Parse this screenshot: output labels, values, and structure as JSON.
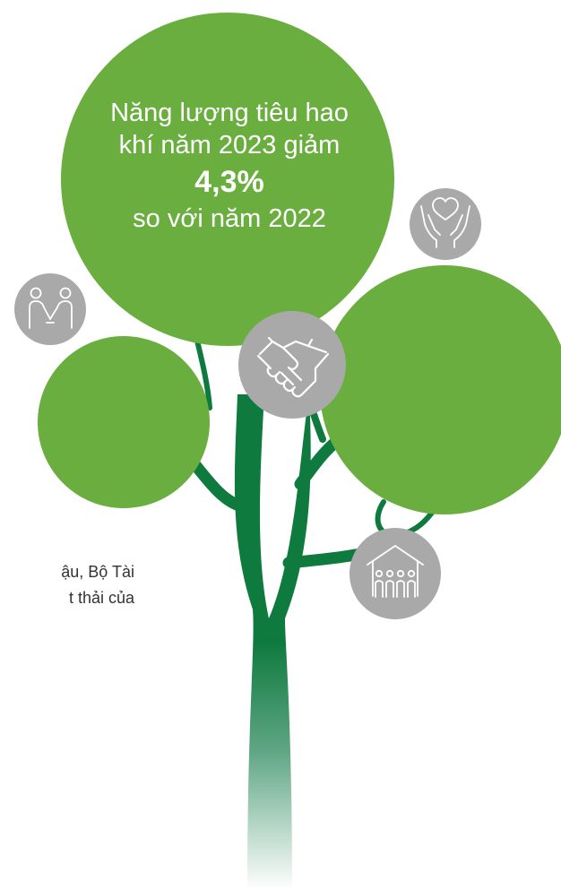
{
  "stat": {
    "line1": "Năng lượng tiêu hao",
    "line2": "khí năm 2023 giảm",
    "value": "4,3%",
    "line3": "so với năm 2022"
  },
  "side_text": {
    "line1": "ậu, Bộ Tài",
    "line2": "t thải của"
  },
  "colors": {
    "leaf_green": "#6aae3f",
    "trunk_green": "#0e7a3e",
    "icon_bubble_gray": "#a9a9a9"
  },
  "icons": [
    "holding-hands-icon",
    "hands-heart-icon",
    "handshake-icon",
    "community-house-icon"
  ]
}
